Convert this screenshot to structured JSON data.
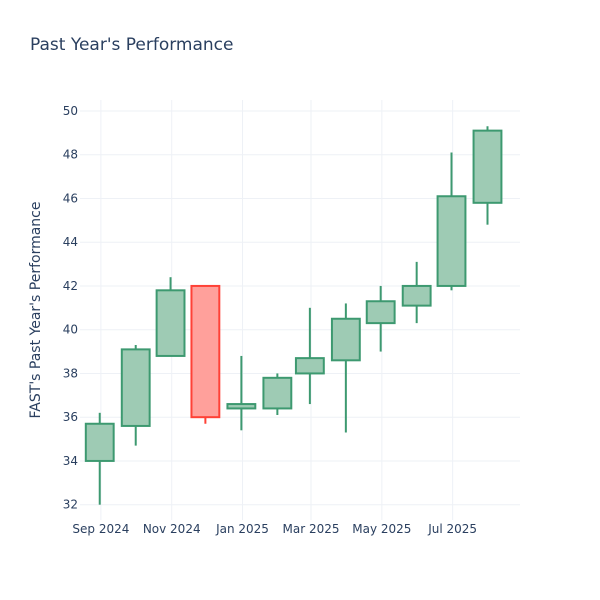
{
  "chart_data": {
    "type": "candlestick",
    "title": "Past Year's Performance",
    "xlabel": "",
    "ylabel": "FAST's Past Year's Performance",
    "ylim": [
      31.3,
      50.5
    ],
    "y_ticks": [
      32,
      34,
      36,
      38,
      40,
      42,
      44,
      46,
      48,
      50
    ],
    "x_range": [
      "2024-08-14",
      "2025-08-28"
    ],
    "x_ticks": [
      {
        "date": "2024-09-01",
        "label": "Sep 2024"
      },
      {
        "date": "2024-11-01",
        "label": "Nov 2024"
      },
      {
        "date": "2025-01-01",
        "label": "Jan 2025"
      },
      {
        "date": "2025-03-01",
        "label": "Mar 2025"
      },
      {
        "date": "2025-05-01",
        "label": "May 2025"
      },
      {
        "date": "2025-07-01",
        "label": "Jul 2025"
      }
    ],
    "grid": true,
    "colors": {
      "increasing_line": "#3d9970",
      "increasing_fill": "#9ecbb4",
      "decreasing_line": "#ff4136",
      "decreasing_fill": "#ffa09b"
    },
    "candles": [
      {
        "date": "2024-08-31",
        "open": 34.0,
        "high": 36.2,
        "low": 32.0,
        "close": 35.7
      },
      {
        "date": "2024-10-01",
        "open": 35.6,
        "high": 39.3,
        "low": 34.7,
        "close": 39.1
      },
      {
        "date": "2024-10-31",
        "open": 38.8,
        "high": 42.4,
        "low": 38.8,
        "close": 41.8
      },
      {
        "date": "2024-11-30",
        "open": 42.0,
        "high": 42.0,
        "low": 35.7,
        "close": 36.0
      },
      {
        "date": "2024-12-31",
        "open": 36.4,
        "high": 38.8,
        "low": 35.4,
        "close": 36.6
      },
      {
        "date": "2025-01-31",
        "open": 36.4,
        "high": 38.0,
        "low": 36.1,
        "close": 37.8
      },
      {
        "date": "2025-02-28",
        "open": 38.0,
        "high": 41.0,
        "low": 36.6,
        "close": 38.7
      },
      {
        "date": "2025-03-31",
        "open": 38.6,
        "high": 41.2,
        "low": 35.3,
        "close": 40.5
      },
      {
        "date": "2025-04-30",
        "open": 40.3,
        "high": 42.0,
        "low": 39.0,
        "close": 41.3
      },
      {
        "date": "2025-05-31",
        "open": 41.1,
        "high": 43.1,
        "low": 40.3,
        "close": 42.0
      },
      {
        "date": "2025-06-30",
        "open": 42.0,
        "high": 48.1,
        "low": 41.8,
        "close": 46.1
      },
      {
        "date": "2025-07-31",
        "open": 45.8,
        "high": 49.3,
        "low": 44.8,
        "close": 49.1
      }
    ]
  }
}
